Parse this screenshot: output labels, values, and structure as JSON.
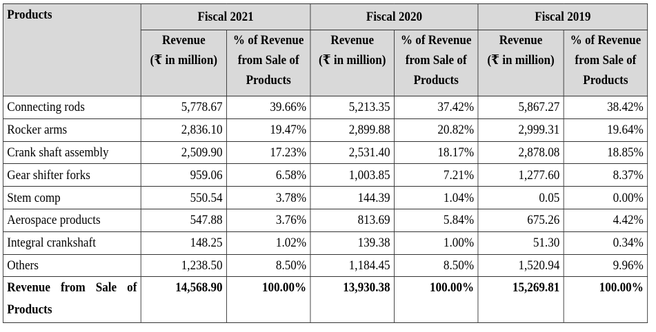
{
  "header": {
    "products": "Products",
    "fiscal_years": [
      "Fiscal 2021",
      "Fiscal 2020",
      "Fiscal 2019"
    ],
    "revenue_label": [
      "Revenue",
      "(₹ in million)"
    ],
    "percent_label": [
      "% of Revenue",
      "from Sale of",
      "Products"
    ]
  },
  "rows": [
    {
      "name": "Connecting rods",
      "values": [
        "5,778.67",
        "39.66%",
        "5,213.35",
        "37.42%",
        "5,867.27",
        "38.42%"
      ]
    },
    {
      "name": "Rocker arms",
      "values": [
        "2,836.10",
        "19.47%",
        "2,899.88",
        "20.82%",
        "2,999.31",
        "19.64%"
      ]
    },
    {
      "name": "Crank shaft assembly",
      "values": [
        "2,509.90",
        "17.23%",
        "2,531.40",
        "18.17%",
        "2,878.08",
        "18.85%"
      ]
    },
    {
      "name": "Gear shifter forks",
      "values": [
        "959.06",
        "6.58%",
        "1,003.85",
        "7.21%",
        "1,277.60",
        "8.37%"
      ]
    },
    {
      "name": "Stem comp",
      "values": [
        "550.54",
        "3.78%",
        "144.39",
        "1.04%",
        "0.05",
        "0.00%"
      ]
    },
    {
      "name": "Aerospace products",
      "values": [
        "547.88",
        "3.76%",
        "813.69",
        "5.84%",
        "675.26",
        "4.42%"
      ]
    },
    {
      "name": "Integral crankshaft",
      "values": [
        "148.25",
        "1.02%",
        "139.38",
        "1.00%",
        "51.30",
        "0.34%"
      ]
    },
    {
      "name": "Others",
      "values": [
        "1,238.50",
        "8.50%",
        "1,184.45",
        "8.50%",
        "1,520.94",
        "9.96%"
      ]
    }
  ],
  "total": {
    "name": "Revenue from Sale of Products",
    "values": [
      "14,568.90",
      "100.00%",
      "13,930.38",
      "100.00%",
      "15,269.81",
      "100.00%"
    ]
  }
}
